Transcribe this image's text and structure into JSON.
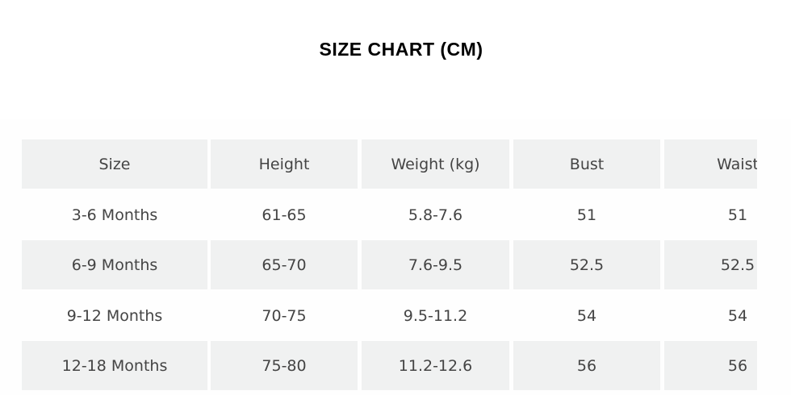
{
  "title": "SIZE CHART (CM)",
  "table": {
    "headers": [
      "Size",
      "Height",
      "Weight (kg)",
      "Bust",
      "Waist"
    ],
    "rows": [
      [
        "3-6 Months",
        "61-65",
        "5.8-7.6",
        "51",
        "51"
      ],
      [
        "6-9 Months",
        "65-70",
        "7.6-9.5",
        "52.5",
        "52.5"
      ],
      [
        "9-12 Months",
        "70-75",
        "9.5-11.2",
        "54",
        "54"
      ],
      [
        "12-18 Months",
        "75-80",
        "11.2-12.6",
        "56",
        "56"
      ]
    ]
  },
  "colors": {
    "header_bg": "#f0f1f1",
    "text": "#444444"
  }
}
